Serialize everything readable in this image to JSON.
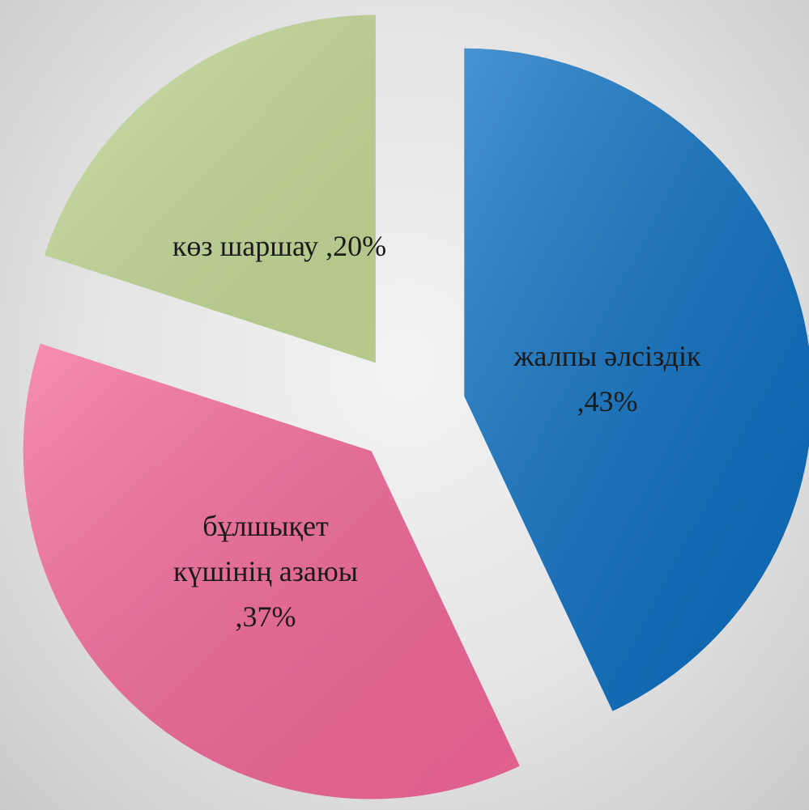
{
  "chart_data": {
    "type": "pie",
    "categories": [
      "жалпы әлсіздік",
      "бұлшықет күшінің азаюы",
      "көз шаршау"
    ],
    "values": [
      43,
      37,
      20
    ],
    "value_labels": [
      ",43%",
      ",37%",
      ",20%"
    ],
    "colors": [
      "#0b6fc1",
      "#f4689a",
      "#c5db98"
    ]
  }
}
